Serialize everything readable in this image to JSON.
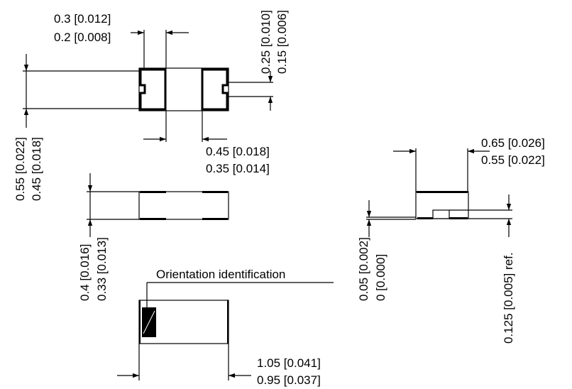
{
  "top_view": {
    "pad_width_max": "0.3 [0.012]",
    "pad_width_min": "0.2 [0.008]",
    "pad_inner_max": "0.25 [0.010]",
    "pad_inner_min": "0.15 [0.006]",
    "body_width_max": "0.55 [0.022]",
    "body_width_min": "0.45 [0.018]",
    "pad_gap_max": "0.45 [0.018]",
    "pad_gap_min": "0.35 [0.014]"
  },
  "side_view": {
    "height_max": "0.4 [0.016]",
    "height_min": "0.33 [0.013]"
  },
  "end_view": {
    "width_max": "0.65 [0.026]",
    "width_min": "0.55 [0.022]",
    "standoff_max": "0.05 [0.002]",
    "standoff_min": "0 [0.000]",
    "pad_ref": "0.125 [0.005] ref."
  },
  "bottom_view": {
    "orientation_label": "Orientation identification",
    "length_max": "1.05 [0.041]",
    "length_min": "0.95 [0.037]"
  }
}
